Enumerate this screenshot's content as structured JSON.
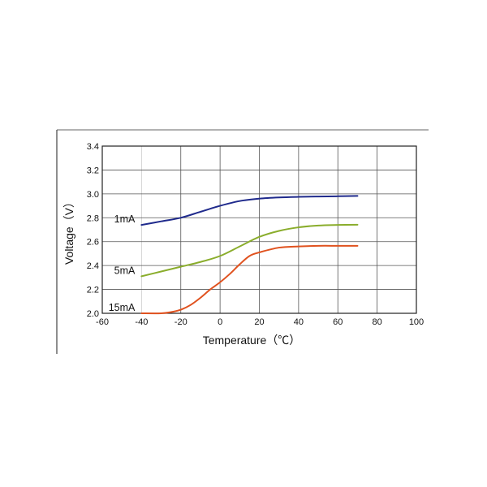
{
  "chart_data": {
    "type": "line",
    "title": "",
    "xlabel": "Temperature（℃）",
    "ylabel": "Voltage（V）",
    "xlim": [
      -60,
      100
    ],
    "ylim": [
      2.0,
      3.4
    ],
    "xticks": [
      -60,
      -40,
      -20,
      0,
      20,
      40,
      60,
      80,
      100
    ],
    "yticks": [
      "2.0",
      "2.2",
      "2.4",
      "2.6",
      "2.8",
      "3.0",
      "3.2",
      "3.4"
    ],
    "grid": true,
    "legend": "inline labels at left end of each line",
    "series": [
      {
        "name": "1mA",
        "color": "#1f2a8c",
        "x": [
          -40,
          -30,
          -20,
          -10,
          0,
          10,
          20,
          30,
          40,
          50,
          60,
          70
        ],
        "y": [
          2.74,
          2.77,
          2.8,
          2.85,
          2.9,
          2.94,
          2.96,
          2.97,
          2.975,
          2.978,
          2.98,
          2.983
        ]
      },
      {
        "name": "5mA",
        "color": "#8aad2c",
        "x": [
          -40,
          -30,
          -20,
          -10,
          0,
          10,
          20,
          30,
          40,
          50,
          60,
          70
        ],
        "y": [
          2.31,
          2.35,
          2.39,
          2.43,
          2.48,
          2.56,
          2.64,
          2.69,
          2.72,
          2.735,
          2.74,
          2.742
        ]
      },
      {
        "name": "15mA",
        "color": "#e0521f",
        "x": [
          -40,
          -30,
          -25,
          -20,
          -15,
          -10,
          -5,
          0,
          5,
          10,
          15,
          20,
          30,
          40,
          50,
          60,
          70
        ],
        "y": [
          2.0,
          2.0,
          2.01,
          2.03,
          2.07,
          2.13,
          2.2,
          2.26,
          2.33,
          2.41,
          2.48,
          2.51,
          2.55,
          2.56,
          2.565,
          2.565,
          2.565
        ]
      }
    ]
  }
}
